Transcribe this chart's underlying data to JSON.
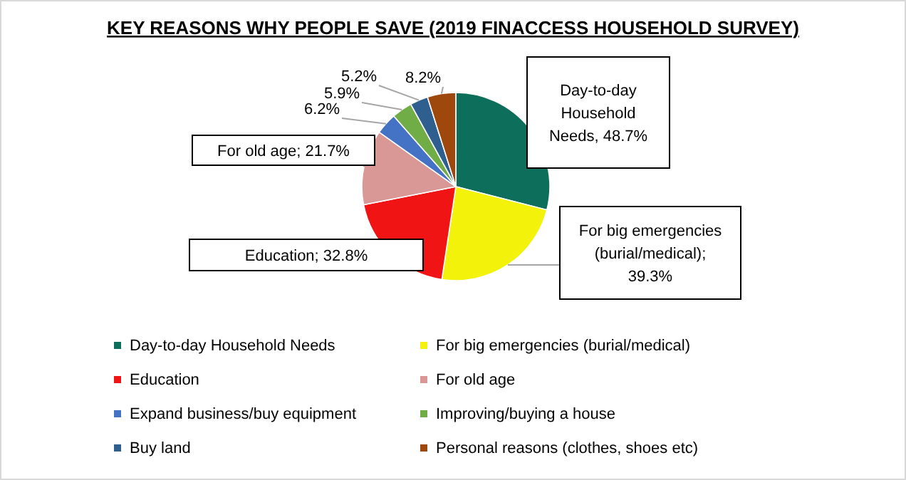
{
  "chart_data": {
    "type": "pie",
    "title": "KEY REASONS WHY PEOPLE SAVE (2019 FINACCESS HOUSEHOLD SURVEY)",
    "categories": [
      "Day-to-day Household Needs",
      "For big emergencies (burial/medical)",
      "Education",
      "For old age",
      "Expand business/buy equipment",
      "Improving/buying a house",
      "Buy land",
      "Personal reasons (clothes, shoes etc)"
    ],
    "values": [
      48.7,
      39.3,
      32.8,
      21.7,
      6.2,
      5.9,
      5.2,
      8.2
    ],
    "colors": [
      "#0e6e5c",
      "#f2f20a",
      "#f01414",
      "#d99795",
      "#4472c4",
      "#70ad47",
      "#2e5f8f",
      "#9e480e"
    ],
    "value_labels": [
      "Day-to-day Household Needs, 48.7%",
      "For big emergencies (burial/medical); 39.3%",
      "Education; 32.8%",
      "For old age; 21.7%",
      "6.2%",
      "5.9%",
      "5.2%",
      "8.2%"
    ],
    "legend": "bottom"
  }
}
